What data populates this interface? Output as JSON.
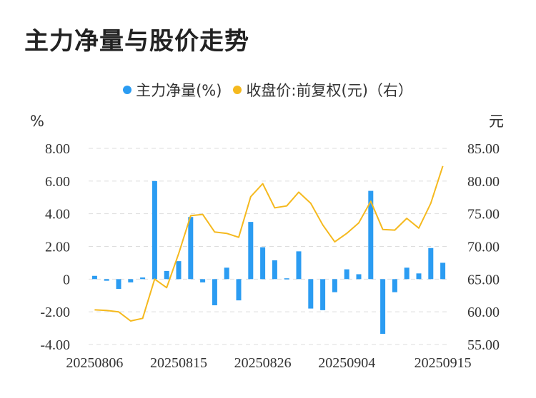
{
  "title": "主力净量与股价走势",
  "colors": {
    "bar": "#2b9cf2",
    "line": "#f5b91e",
    "grid": "#dddddd"
  },
  "chart_data": {
    "type": "bar",
    "title": "主力净量与股价走势",
    "legend_position": "top",
    "left_unit": "%",
    "right_unit": "元",
    "series": [
      {
        "name": "主力净量(%)",
        "type": "bar",
        "axis": "left",
        "values": [
          0.2,
          -0.1,
          -0.6,
          -0.2,
          0.1,
          6.0,
          0.5,
          1.1,
          3.8,
          -0.2,
          -1.6,
          0.7,
          -1.3,
          3.5,
          1.95,
          1.15,
          0.05,
          1.7,
          -1.8,
          -1.9,
          -0.8,
          0.6,
          0.3,
          5.4,
          -3.35,
          -0.8,
          0.7,
          0.35,
          1.9,
          1.0
        ]
      },
      {
        "name": "收盘价:前复权(元)（右）",
        "type": "line",
        "axis": "right",
        "values": [
          60.3,
          60.2,
          60.0,
          58.6,
          59.0,
          65.0,
          63.7,
          68.9,
          74.7,
          74.9,
          72.2,
          72.0,
          71.4,
          77.6,
          79.6,
          75.9,
          76.2,
          78.3,
          76.6,
          73.3,
          70.7,
          72.0,
          73.6,
          76.9,
          72.6,
          72.5,
          74.3,
          72.8,
          76.6,
          82.3
        ]
      }
    ],
    "x_labels": [
      "20250806",
      "20250815",
      "20250826",
      "20250904",
      "20250915"
    ],
    "x_label_indices": [
      0,
      7,
      14,
      21,
      29
    ],
    "ylim_left": [
      -4,
      8
    ],
    "ylim_right": [
      55,
      85
    ],
    "yticks_left": [
      "8.00",
      "6.00",
      "4.00",
      "2.00",
      "0",
      "-2.00",
      "-4.00"
    ],
    "yticks_right": [
      "85.00",
      "80.00",
      "75.00",
      "70.00",
      "65.00",
      "60.00",
      "55.00"
    ],
    "grid": true
  }
}
